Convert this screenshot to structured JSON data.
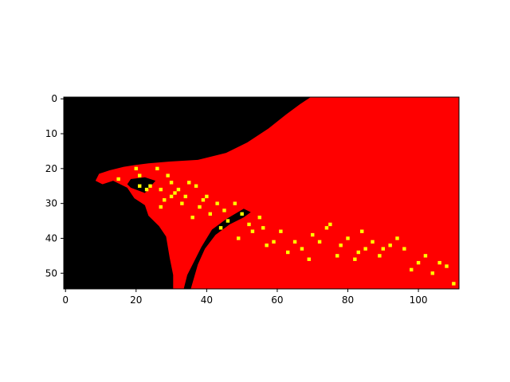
{
  "chart_data": {
    "type": "heatmap",
    "title": "",
    "xlabel": "",
    "ylabel": "",
    "xlim": [
      0,
      112
    ],
    "ylim": [
      55,
      0
    ],
    "x_ticks": [
      0,
      20,
      40,
      60,
      80,
      100
    ],
    "y_ticks": [
      0,
      10,
      20,
      30,
      40,
      50
    ],
    "grid": false,
    "colors": {
      "background": "#000000",
      "region": "#ff0000",
      "spot": "#ffff00",
      "frame": "#000000"
    },
    "red_region_polygon": [
      [
        70,
        0
      ],
      [
        112,
        0
      ],
      [
        112,
        55
      ],
      [
        31,
        55
      ],
      [
        31,
        51
      ],
      [
        30,
        46
      ],
      [
        29,
        40
      ],
      [
        27,
        37
      ],
      [
        24,
        34
      ],
      [
        23,
        31
      ],
      [
        20,
        29
      ],
      [
        18,
        26
      ],
      [
        14,
        24
      ],
      [
        11,
        25
      ],
      [
        9,
        24
      ],
      [
        10,
        22
      ],
      [
        13,
        21
      ],
      [
        17,
        20
      ],
      [
        20,
        19.5
      ],
      [
        24,
        19
      ],
      [
        30,
        18.5
      ],
      [
        38,
        18
      ],
      [
        46,
        16
      ],
      [
        52,
        13
      ],
      [
        58,
        9
      ],
      [
        63,
        5
      ],
      [
        67,
        2
      ]
    ],
    "black_streak_polygon": [
      [
        34,
        55
      ],
      [
        35,
        51
      ],
      [
        37,
        47
      ],
      [
        39,
        43
      ],
      [
        42,
        38
      ],
      [
        46,
        35
      ],
      [
        51,
        32
      ],
      [
        53,
        33
      ],
      [
        51,
        34.5
      ],
      [
        47,
        36.5
      ],
      [
        43,
        39.5
      ],
      [
        40,
        43.5
      ],
      [
        38,
        48
      ],
      [
        36,
        55
      ]
    ],
    "black_notch_polygon": [
      [
        19,
        23.5
      ],
      [
        23,
        23
      ],
      [
        26,
        24
      ],
      [
        23,
        27.5
      ],
      [
        19,
        26
      ],
      [
        18,
        25
      ]
    ],
    "yellow_points": [
      [
        15,
        23
      ],
      [
        20,
        20
      ],
      [
        21,
        22
      ],
      [
        23,
        26
      ],
      [
        24,
        25
      ],
      [
        26,
        20
      ],
      [
        27,
        26
      ],
      [
        28,
        29
      ],
      [
        29,
        22
      ],
      [
        30,
        24
      ],
      [
        30,
        28
      ],
      [
        32,
        26
      ],
      [
        33,
        30
      ],
      [
        34,
        28
      ],
      [
        35,
        24
      ],
      [
        37,
        25
      ],
      [
        36,
        34
      ],
      [
        38,
        31
      ],
      [
        39,
        29
      ],
      [
        40,
        28
      ],
      [
        41,
        33
      ],
      [
        43,
        30
      ],
      [
        44,
        37
      ],
      [
        46,
        35
      ],
      [
        48,
        30
      ],
      [
        49,
        40
      ],
      [
        50,
        33
      ],
      [
        53,
        38
      ],
      [
        55,
        34
      ],
      [
        56,
        37
      ],
      [
        57,
        42
      ],
      [
        59,
        41
      ],
      [
        61,
        38
      ],
      [
        63,
        44
      ],
      [
        65,
        41
      ],
      [
        67,
        43
      ],
      [
        69,
        46
      ],
      [
        70,
        39
      ],
      [
        72,
        41
      ],
      [
        74,
        37
      ],
      [
        75,
        36
      ],
      [
        77,
        45
      ],
      [
        78,
        42
      ],
      [
        80,
        40
      ],
      [
        82,
        46
      ],
      [
        83,
        44
      ],
      [
        84,
        38
      ],
      [
        85,
        43
      ],
      [
        87,
        41
      ],
      [
        89,
        45
      ],
      [
        90,
        43
      ],
      [
        92,
        42
      ],
      [
        94,
        40
      ],
      [
        96,
        43
      ],
      [
        98,
        49
      ],
      [
        100,
        47
      ],
      [
        102,
        45
      ],
      [
        104,
        50
      ],
      [
        106,
        47
      ],
      [
        108,
        48
      ],
      [
        110,
        53
      ],
      [
        21,
        25
      ],
      [
        27,
        31
      ],
      [
        31,
        27
      ],
      [
        45,
        32
      ],
      [
        52,
        36
      ]
    ]
  }
}
